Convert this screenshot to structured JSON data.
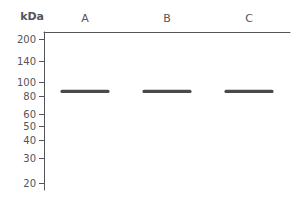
{
  "chart_data": {
    "type": "band",
    "ylabel": "kDa",
    "categories": [
      "A",
      "B",
      "C"
    ],
    "values": [
      87,
      87,
      87
    ],
    "band_height": 4.5,
    "color": "#4a4a4a",
    "log": "y",
    "ylim": [
      18,
      225
    ],
    "yticks": [
      200,
      140,
      100,
      80,
      60,
      50,
      40,
      30,
      20
    ],
    "grid": false
  }
}
